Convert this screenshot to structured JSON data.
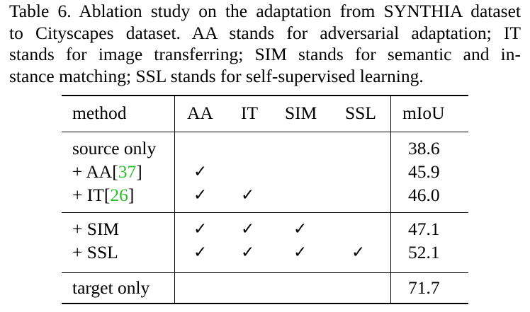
{
  "caption": {
    "lines": [
      "Table 6. Ablation study on the adaptation from SYNTHIA dataset",
      "to Cityscapes dataset.  AA stands for adversarial adaptation; IT",
      "stands for image transferring; SIM stands for semantic and in-",
      "stance matching; SSL stands for self-supervised learning."
    ]
  },
  "table": {
    "headers": {
      "method": "method",
      "aa": "AA",
      "it": "IT",
      "sim": "SIM",
      "ssl": "SSL",
      "miou": "mIoU"
    },
    "check_symbol": "✓",
    "rows": [
      {
        "method": "source only",
        "cite": "",
        "cite_close": "",
        "aa": false,
        "it": false,
        "sim": false,
        "ssl": false,
        "miou": "38.6"
      },
      {
        "method": "+ AA",
        "cite_open": "[",
        "cite": "37",
        "cite_close": "]",
        "aa": true,
        "it": false,
        "sim": false,
        "ssl": false,
        "miou": "45.9"
      },
      {
        "method": "+ IT",
        "cite_open": "[",
        "cite": "26",
        "cite_close": "]",
        "aa": true,
        "it": true,
        "sim": false,
        "ssl": false,
        "miou": "46.0"
      },
      {
        "method": "+ SIM",
        "cite": "",
        "cite_close": "",
        "aa": true,
        "it": true,
        "sim": true,
        "ssl": false,
        "miou": "47.1"
      },
      {
        "method": "+ SSL",
        "cite": "",
        "cite_close": "",
        "aa": true,
        "it": true,
        "sim": true,
        "ssl": true,
        "miou": "52.1"
      },
      {
        "method": "target only",
        "cite": "",
        "cite_close": "",
        "aa": false,
        "it": false,
        "sim": false,
        "ssl": false,
        "miou": "71.7"
      }
    ],
    "citation_color": "#2bbf2b"
  }
}
